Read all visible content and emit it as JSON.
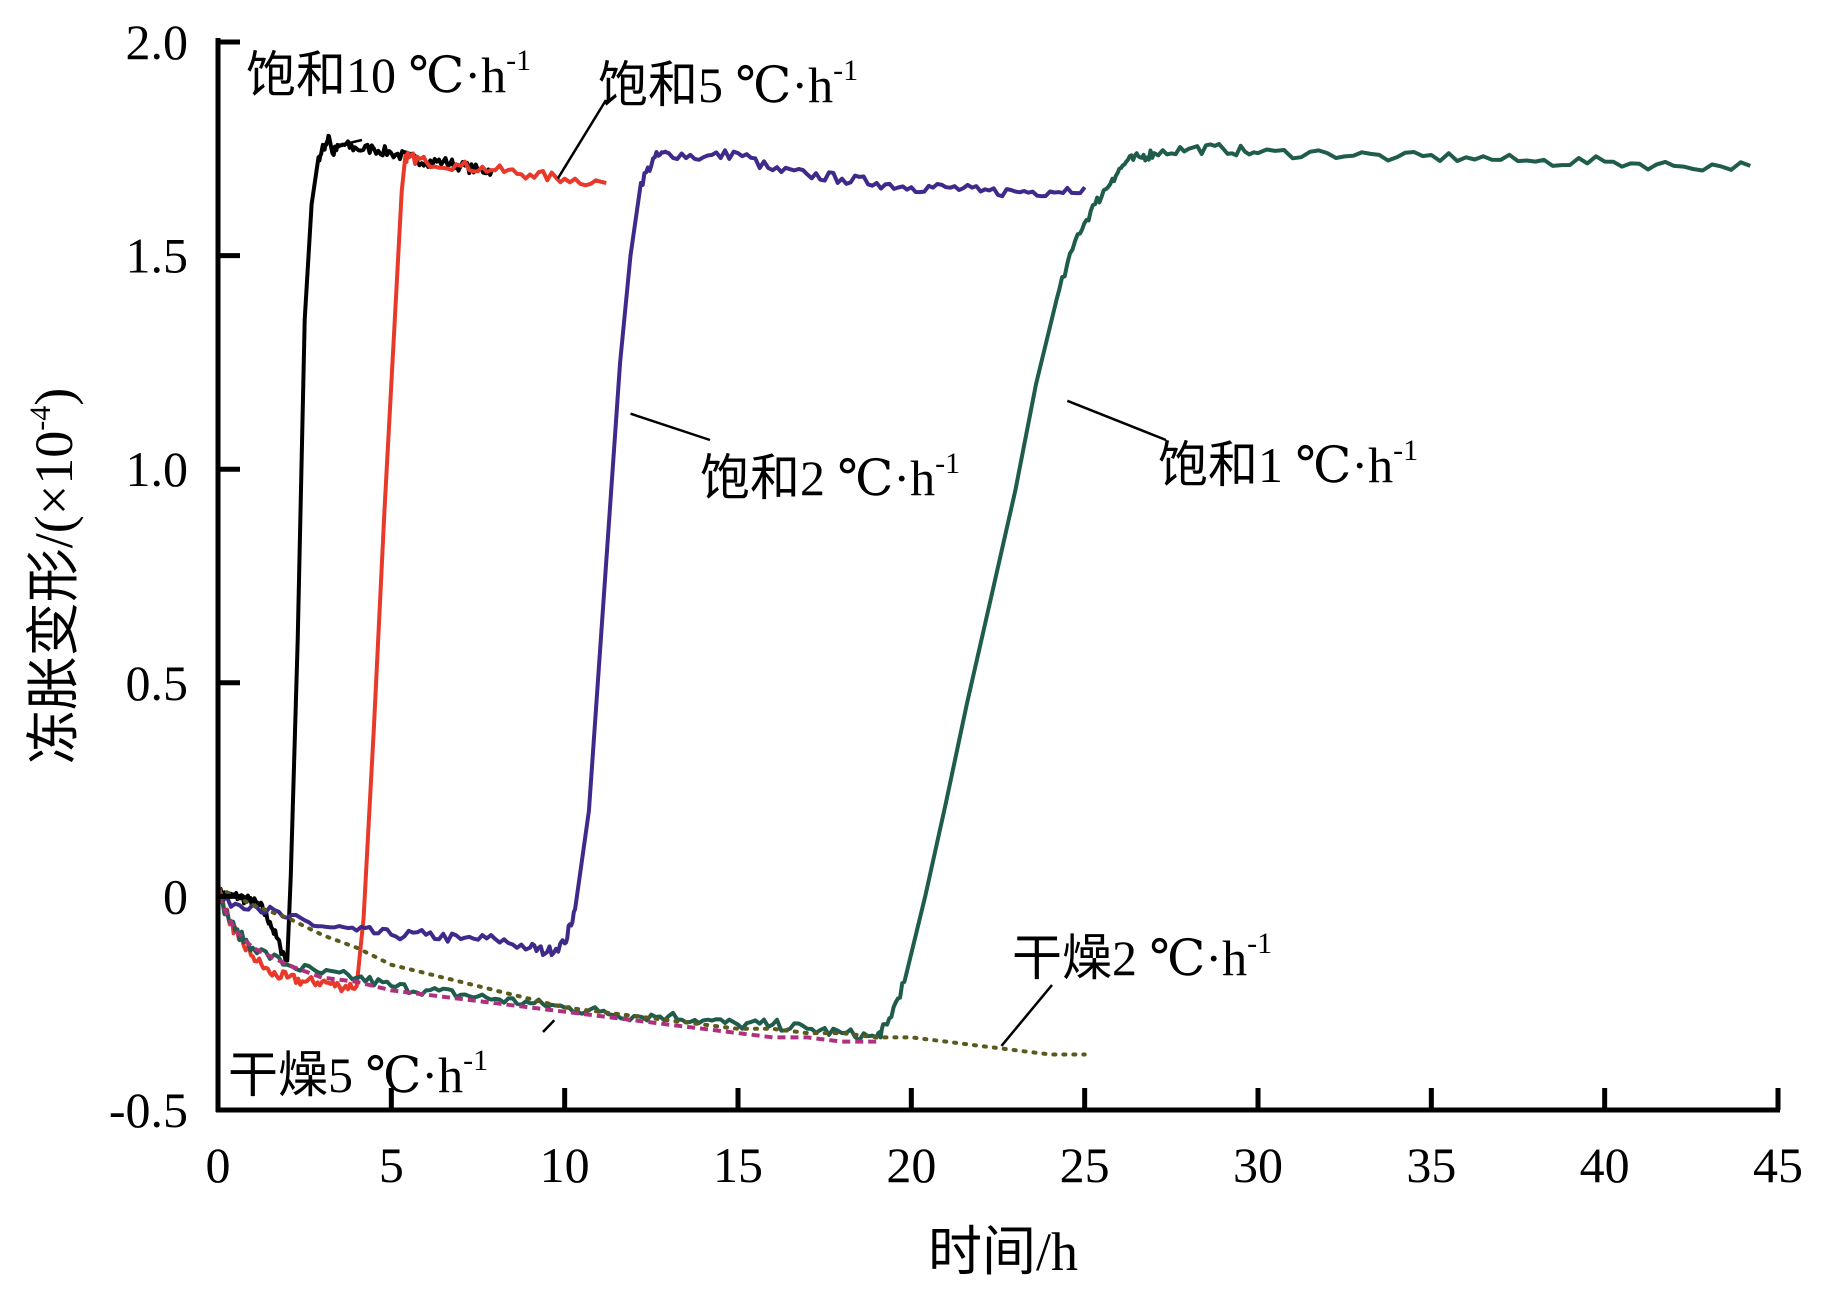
{
  "chart_data": {
    "type": "line",
    "title": "",
    "xlabel": "时间/h",
    "ylabel": "冻胀变形/(×10-4)",
    "ylabel_parts": {
      "main": "冻胀变形/(×10",
      "sup": "-4",
      "tail": ")"
    },
    "xlim": [
      0,
      45
    ],
    "ylim": [
      -0.5,
      2.0
    ],
    "xticks": [
      0,
      5,
      10,
      15,
      20,
      25,
      30,
      35,
      40,
      45
    ],
    "xtick_labels": [
      "0",
      "5",
      "10",
      "15",
      "20",
      "25",
      "30",
      "35",
      "40",
      "45"
    ],
    "yticks": [
      -0.5,
      0,
      0.5,
      1.0,
      1.5,
      2.0
    ],
    "ytick_labels": [
      "-0.5",
      "0",
      "0.5",
      "1.0",
      "1.5",
      "2.0"
    ],
    "grid": false,
    "legend": "none",
    "series": [
      {
        "key": "sat10",
        "name": "饱和10 ℃·h-1",
        "label_main": "饱和10 ℃·h",
        "label_sup": "-1",
        "color": "#000000",
        "dash": "solid",
        "x": [
          0,
          0.3,
          0.6,
          0.9,
          1.2,
          1.5,
          1.8,
          2.0,
          2.1,
          2.3,
          2.5,
          2.7,
          2.9,
          3.1,
          3.2,
          3.3,
          3.6,
          4.0,
          4.5,
          5.0,
          5.5,
          6.0,
          6.5,
          7.0,
          7.5,
          7.9
        ],
        "y": [
          0.01,
          0.0,
          0.0,
          -0.01,
          -0.02,
          -0.06,
          -0.12,
          -0.15,
          0.05,
          0.6,
          1.35,
          1.62,
          1.73,
          1.76,
          1.78,
          1.74,
          1.76,
          1.75,
          1.75,
          1.74,
          1.73,
          1.72,
          1.72,
          1.71,
          1.7,
          1.7
        ]
      },
      {
        "key": "sat5",
        "name": "饱和5 ℃·h-1",
        "label_main": "饱和5 ℃·h",
        "label_sup": "-1",
        "color": "#e8392a",
        "dash": "solid",
        "x": [
          0,
          0.3,
          0.6,
          1.0,
          1.5,
          2.0,
          2.5,
          3.0,
          3.5,
          4.0,
          4.2,
          4.5,
          4.8,
          5.1,
          5.3,
          5.4,
          5.5,
          6.0,
          7.0,
          8.0,
          9.0,
          10.0,
          11.2
        ],
        "y": [
          0.02,
          -0.05,
          -0.1,
          -0.14,
          -0.18,
          -0.19,
          -0.2,
          -0.2,
          -0.21,
          -0.21,
          -0.05,
          0.4,
          0.9,
          1.35,
          1.65,
          1.73,
          1.73,
          1.72,
          1.71,
          1.7,
          1.69,
          1.68,
          1.67
        ]
      },
      {
        "key": "sat2",
        "name": "饱和2 ℃·h-1",
        "label_main": "饱和2 ℃·h",
        "label_sup": "-1",
        "color": "#3f2a8c",
        "dash": "solid",
        "x": [
          0,
          1,
          2,
          3,
          4,
          5,
          6,
          7,
          8,
          9,
          9.5,
          10,
          10.3,
          10.7,
          11.0,
          11.3,
          11.6,
          11.9,
          12.2,
          12.6,
          13,
          14,
          15,
          16,
          17,
          18,
          19,
          20,
          21,
          22,
          23,
          24,
          25
        ],
        "y": [
          -0.01,
          -0.02,
          -0.05,
          -0.07,
          -0.08,
          -0.09,
          -0.09,
          -0.1,
          -0.1,
          -0.12,
          -0.13,
          -0.11,
          -0.03,
          0.2,
          0.55,
          0.9,
          1.25,
          1.5,
          1.67,
          1.73,
          1.74,
          1.73,
          1.74,
          1.7,
          1.69,
          1.68,
          1.67,
          1.66,
          1.66,
          1.65,
          1.65,
          1.65,
          1.66
        ]
      },
      {
        "key": "sat1",
        "name": "饱和1 ℃·h-1",
        "label_main": "饱和1 ℃·h",
        "label_sup": "-1",
        "color": "#1f5c4b",
        "dash": "solid",
        "x": [
          0,
          0.5,
          1,
          2,
          3,
          4,
          5,
          6,
          7,
          8,
          9,
          10,
          11,
          12,
          13,
          14,
          15,
          16,
          17,
          18,
          19,
          19.3,
          19.8,
          20.4,
          21,
          21.6,
          22.3,
          23,
          23.6,
          24.2,
          24.8,
          25.3,
          25.8,
          26.2,
          26.6,
          27,
          28,
          29,
          30,
          32,
          34,
          36,
          38,
          40,
          42,
          44.2
        ],
        "y": [
          0.0,
          -0.08,
          -0.12,
          -0.16,
          -0.18,
          -0.19,
          -0.21,
          -0.22,
          -0.23,
          -0.24,
          -0.25,
          -0.26,
          -0.27,
          -0.28,
          -0.28,
          -0.29,
          -0.3,
          -0.3,
          -0.31,
          -0.32,
          -0.33,
          -0.3,
          -0.2,
          0.0,
          0.22,
          0.45,
          0.7,
          0.95,
          1.2,
          1.4,
          1.55,
          1.62,
          1.68,
          1.72,
          1.73,
          1.74,
          1.75,
          1.75,
          1.74,
          1.74,
          1.73,
          1.73,
          1.72,
          1.72,
          1.71,
          1.71
        ]
      },
      {
        "key": "dry5",
        "name": "干燥5 ℃·h-1",
        "label_main": "干燥5 ℃·h",
        "label_sup": "-1",
        "color": "#b03080",
        "dash": "dashed",
        "x": [
          0,
          0.5,
          1,
          2,
          3,
          4,
          5,
          6,
          7,
          8,
          9,
          10,
          11,
          12,
          13,
          14,
          15,
          16,
          17,
          18,
          19
        ],
        "y": [
          0.0,
          -0.08,
          -0.12,
          -0.16,
          -0.19,
          -0.2,
          -0.22,
          -0.23,
          -0.24,
          -0.25,
          -0.26,
          -0.27,
          -0.28,
          -0.29,
          -0.3,
          -0.31,
          -0.32,
          -0.33,
          -0.33,
          -0.34,
          -0.34
        ]
      },
      {
        "key": "dry2",
        "name": "干燥2 ℃·h-1",
        "label_main": "干燥2 ℃·h",
        "label_sup": "-1",
        "color": "#5a5a1c",
        "dash": "dotted",
        "x": [
          0,
          1,
          2,
          3,
          4,
          5,
          6,
          7,
          8,
          9,
          10,
          11,
          12,
          13,
          14,
          15,
          16,
          17,
          18,
          19,
          20,
          21,
          22,
          23,
          24,
          25
        ],
        "y": [
          0.02,
          -0.02,
          -0.05,
          -0.09,
          -0.12,
          -0.16,
          -0.18,
          -0.2,
          -0.22,
          -0.24,
          -0.26,
          -0.27,
          -0.28,
          -0.29,
          -0.3,
          -0.31,
          -0.31,
          -0.32,
          -0.32,
          -0.33,
          -0.33,
          -0.34,
          -0.35,
          -0.36,
          -0.37,
          -0.37
        ]
      }
    ]
  }
}
